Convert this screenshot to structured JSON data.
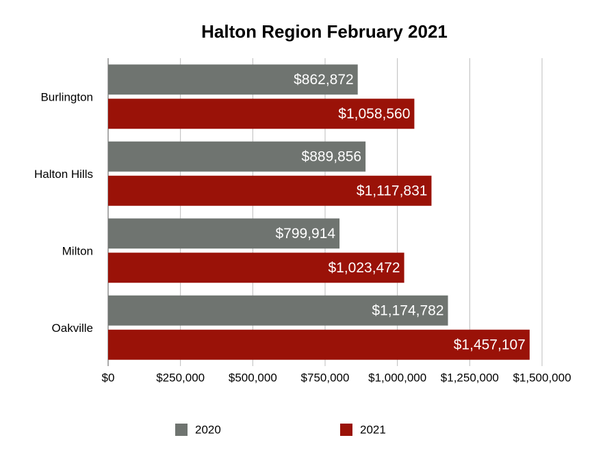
{
  "chart_data": {
    "type": "bar",
    "orientation": "horizontal",
    "title": "Halton Region February 2021",
    "categories": [
      "Burlington",
      "Halton Hills",
      "Milton",
      "Oakville"
    ],
    "series": [
      {
        "name": "2020",
        "color": "#6f7470",
        "values": [
          862872,
          889856,
          799914,
          1174782
        ],
        "value_labels": [
          "$862,872",
          "$889,856",
          "$799,914",
          "$1,174,782"
        ]
      },
      {
        "name": "2021",
        "color": "#9a1208",
        "values": [
          1058560,
          1117831,
          1023472,
          1457107
        ],
        "value_labels": [
          "$1,058,560",
          "$1,117,831",
          "$1,023,472",
          "$1,457,107"
        ]
      }
    ],
    "xlim": [
      0,
      1500000
    ],
    "xticks": [
      {
        "value": 0,
        "label": "$0"
      },
      {
        "value": 250000,
        "label": "$250,000"
      },
      {
        "value": 500000,
        "label": "$500,000"
      },
      {
        "value": 750000,
        "label": "$750,000"
      },
      {
        "value": 1000000,
        "label": "$1,000,000"
      },
      {
        "value": 1250000,
        "label": "$1,250,000"
      },
      {
        "value": 1500000,
        "label": "$1,500,000"
      }
    ],
    "grid": true,
    "legend": "bottom"
  }
}
